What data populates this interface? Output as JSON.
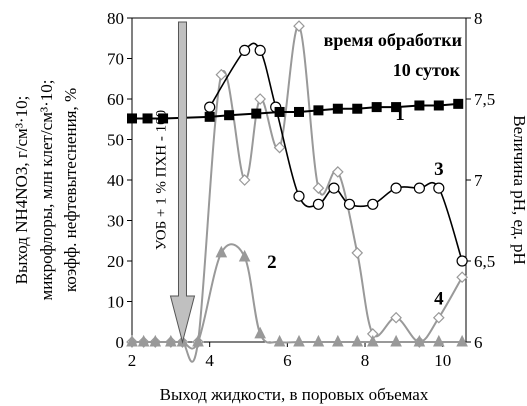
{
  "chart_data": {
    "type": "line",
    "xlabel": "Выход жидкости, в поровых объемах",
    "ylabel_left_lines": [
      "Выход NH4NO3, г/см³·10;",
      "микрофлоры, млн клет/см³·10;",
      "коэфф. нефтевытеснения, %"
    ],
    "ylabel_right": "Величина pH, ед. pH",
    "xlim": [
      2,
      10.6
    ],
    "ylim_left": [
      0,
      80
    ],
    "ylim_right": [
      6,
      8
    ],
    "x_ticks": [
      2,
      4,
      6,
      8,
      10
    ],
    "y_ticks_left": [
      0,
      10,
      20,
      30,
      40,
      50,
      60,
      70,
      80
    ],
    "y_ticks_right": [
      6,
      6.5,
      7,
      7.5,
      8
    ],
    "y_ticks_right_labels": [
      "6",
      "6,5",
      "7",
      "7,5",
      "8"
    ],
    "annotation_lines": [
      "время обработки",
      "10 суток"
    ],
    "arrow_label": "УОБ + 1 % ПХН - 100",
    "arrow_x": 3.3,
    "series": [
      {
        "name": "1",
        "axis": "right",
        "marker": "square",
        "color": "#000000",
        "x": [
          2.0,
          2.4,
          2.8,
          4.0,
          4.5,
          5.2,
          5.8,
          6.3,
          6.8,
          7.3,
          7.8,
          8.3,
          8.8,
          9.4,
          9.9,
          10.4
        ],
        "y": [
          7.38,
          7.38,
          7.38,
          7.39,
          7.4,
          7.41,
          7.42,
          7.42,
          7.43,
          7.44,
          7.44,
          7.45,
          7.45,
          7.46,
          7.46,
          7.47
        ]
      },
      {
        "name": "3",
        "axis": "left",
        "marker": "circle-open",
        "color": "#000000",
        "x": [
          4.0,
          4.9,
          5.3,
          5.7,
          6.3,
          6.8,
          7.2,
          7.6,
          8.2,
          8.8,
          9.4,
          9.9,
          10.5
        ],
        "y": [
          58,
          72,
          72,
          58,
          36,
          34,
          38,
          34,
          34,
          38,
          38,
          38,
          20
        ]
      },
      {
        "name": "",
        "axis": "left",
        "marker": "diamond-open",
        "color": "#999999",
        "x": [
          2.0,
          2.3,
          2.6,
          3.0,
          3.3,
          3.7,
          4.3,
          4.9,
          5.3,
          5.8,
          6.3,
          6.8,
          7.3,
          7.8,
          8.2,
          8.8,
          9.4,
          9.9,
          10.5
        ],
        "y": [
          0,
          0,
          0,
          0,
          0,
          0,
          66,
          40,
          60,
          48,
          78,
          38,
          42,
          22,
          2,
          6,
          0,
          6,
          16
        ]
      },
      {
        "name": "2",
        "axis": "left",
        "marker": "triangle",
        "color": "#999999",
        "x": [
          2.0,
          2.3,
          2.6,
          3.0,
          3.3,
          3.7,
          4.3,
          4.9,
          5.3,
          5.8,
          6.3,
          6.8,
          7.3,
          7.8,
          8.2,
          8.8,
          9.4,
          9.9,
          10.5
        ],
        "y": [
          0,
          0,
          0,
          0,
          0,
          0,
          22,
          21,
          2,
          0,
          0,
          0,
          0,
          0,
          0,
          0,
          0,
          0,
          0
        ]
      }
    ],
    "series_labels": [
      {
        "text": "1",
        "x": 8.9,
        "y_left": 56.5
      },
      {
        "text": "3",
        "x": 9.9,
        "y_left": 43
      },
      {
        "text": "2",
        "x": 5.6,
        "y_left": 20
      },
      {
        "text": "4",
        "x": 9.9,
        "y_left": 11
      }
    ]
  }
}
